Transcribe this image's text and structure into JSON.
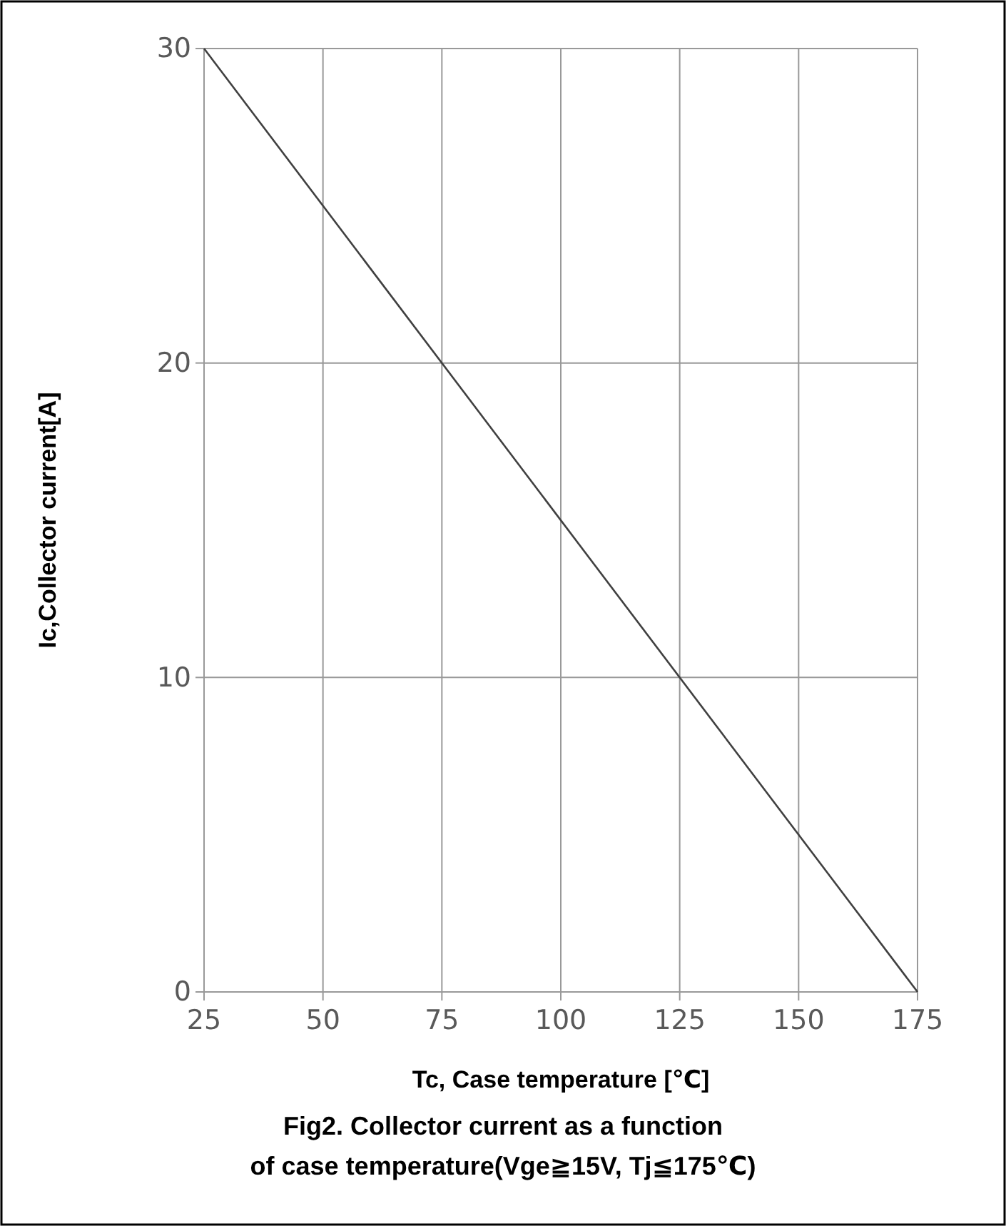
{
  "chart_data": {
    "type": "line",
    "title": "Fig2. Collector current as a function of case temperature(Vge≧15V, Tj≦175℃)",
    "xlabel": "Tc, Case temperature [℃]",
    "ylabel": "Ic,Collector current[A]",
    "x": [
      25,
      175
    ],
    "values": [
      30,
      0
    ],
    "color": "#404040",
    "xlim": [
      25,
      175
    ],
    "xticks": [
      25,
      50,
      75,
      100,
      125,
      150,
      175
    ],
    "ylim": [
      0,
      30
    ],
    "yticks": [
      0,
      10,
      20,
      30
    ],
    "grid": true,
    "marker": "none",
    "line_style": "solid"
  }
}
